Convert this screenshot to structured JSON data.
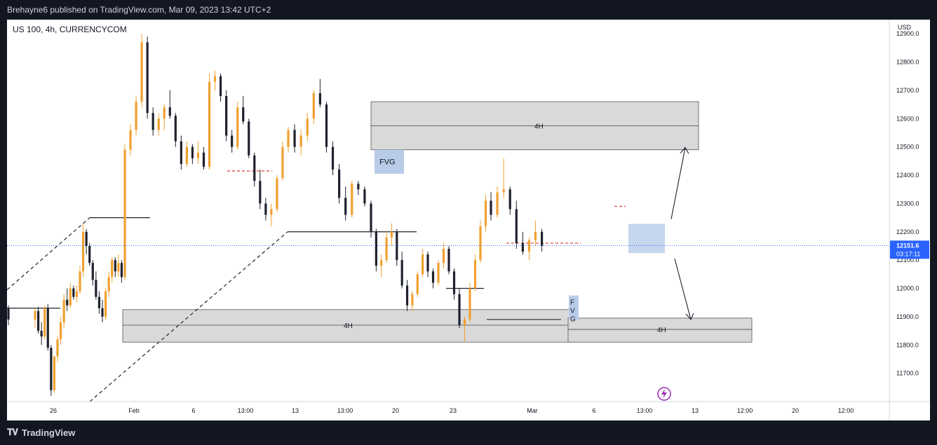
{
  "header": {
    "published": "Brehayne6 published on TradingView.com, Mar 09, 2023 13:42 UTC+2"
  },
  "symbol": "US 100, 4h, CURRENCYCOM",
  "footer": {
    "brand": "TradingView",
    "logo": "tv-logo-icon"
  },
  "colors": {
    "bull": "#f0a030",
    "bear": "#1e222d",
    "zone": "#d9d9d9",
    "fvg": "#b8cce8",
    "price_line": "#2962ff",
    "dashed_red": "#e53935"
  },
  "chart_data": {
    "type": "candlestick",
    "currency": "USD",
    "ylim": [
      11600,
      12950
    ],
    "y_ticks": [
      "12900.0",
      "12800.0",
      "12700.0",
      "12600.0",
      "12500.0",
      "12400.0",
      "12300.0",
      "12200.0",
      "12100.0",
      "12000.0",
      "11900.0",
      "11800.0",
      "11700.0"
    ],
    "x_ticks": [
      "26",
      "Feb",
      "6",
      "13:00",
      "13",
      "13:00",
      "20",
      "23",
      "Mar",
      "6",
      "13:00",
      "13",
      "12:00",
      "20",
      "12:00"
    ],
    "last_price": "12151.6",
    "countdown": "03:17:11",
    "annotations": {
      "zone_upper_label": "4H",
      "zone_lower_left_label": "4H",
      "zone_lower_right_label": "4H",
      "fvg_top_label": "FVG",
      "fvg_bottom_label": "F V G"
    },
    "candles": [
      [
        11930,
        11940,
        11870,
        11890
      ],
      [
        11890,
        11930,
        11860,
        11920
      ],
      [
        11920,
        11935,
        11840,
        11850
      ],
      [
        11850,
        11880,
        11800,
        11830
      ],
      [
        11830,
        11940,
        11820,
        11930
      ],
      [
        11930,
        11945,
        11780,
        11790
      ],
      [
        11790,
        11800,
        11620,
        11640
      ],
      [
        11640,
        11760,
        11630,
        11760
      ],
      [
        11760,
        11830,
        11740,
        11820
      ],
      [
        11820,
        11900,
        11800,
        11880
      ],
      [
        11880,
        11980,
        11860,
        11960
      ],
      [
        11960,
        12000,
        11920,
        11940
      ],
      [
        11940,
        12020,
        11930,
        12000
      ],
      [
        12000,
        12010,
        11960,
        11970
      ],
      [
        11970,
        12010,
        11950,
        11990
      ],
      [
        11990,
        12080,
        11980,
        12060
      ],
      [
        12060,
        12230,
        12040,
        12200
      ],
      [
        12200,
        12210,
        12120,
        12150
      ],
      [
        12150,
        12160,
        12080,
        12090
      ],
      [
        12090,
        12100,
        12010,
        12030
      ],
      [
        12030,
        12060,
        11960,
        11970
      ],
      [
        11970,
        11990,
        11910,
        11930
      ],
      [
        11930,
        11960,
        11880,
        11900
      ],
      [
        11900,
        12000,
        11890,
        11990
      ],
      [
        11990,
        12060,
        11970,
        12040
      ],
      [
        12040,
        12110,
        12020,
        12100
      ],
      [
        12100,
        12110,
        12040,
        12060
      ],
      [
        12060,
        12120,
        12040,
        12090
      ],
      [
        12090,
        12100,
        12020,
        12040
      ],
      [
        12040,
        12510,
        12030,
        12490
      ],
      [
        12490,
        12580,
        12470,
        12560
      ],
      [
        12560,
        12680,
        12540,
        12660
      ],
      [
        12660,
        12900,
        12640,
        12870
      ],
      [
        12870,
        12890,
        12600,
        12620
      ],
      [
        12620,
        12640,
        12540,
        12560
      ],
      [
        12560,
        12620,
        12540,
        12600
      ],
      [
        12600,
        12650,
        12560,
        12640
      ],
      [
        12640,
        12700,
        12600,
        12610
      ],
      [
        12610,
        12620,
        12500,
        12520
      ],
      [
        12520,
        12540,
        12420,
        12440
      ],
      [
        12440,
        12520,
        12430,
        12500
      ],
      [
        12500,
        12510,
        12440,
        12460
      ],
      [
        12460,
        12520,
        12440,
        12480
      ],
      [
        12480,
        12500,
        12420,
        12430
      ],
      [
        12430,
        12760,
        12420,
        12730
      ],
      [
        12730,
        12770,
        12700,
        12750
      ],
      [
        12750,
        12760,
        12660,
        12680
      ],
      [
        12680,
        12700,
        12520,
        12540
      ],
      [
        12540,
        12560,
        12480,
        12500
      ],
      [
        12500,
        12660,
        12490,
        12640
      ],
      [
        12640,
        12680,
        12580,
        12590
      ],
      [
        12590,
        12600,
        12460,
        12470
      ],
      [
        12470,
        12480,
        12360,
        12380
      ],
      [
        12380,
        12420,
        12280,
        12300
      ],
      [
        12300,
        12320,
        12240,
        12260
      ],
      [
        12260,
        12300,
        12220,
        12280
      ],
      [
        12280,
        12400,
        12270,
        12390
      ],
      [
        12390,
        12520,
        12380,
        12500
      ],
      [
        12500,
        12570,
        12480,
        12560
      ],
      [
        12560,
        12580,
        12480,
        12500
      ],
      [
        12500,
        12560,
        12470,
        12540
      ],
      [
        12540,
        12620,
        12520,
        12600
      ],
      [
        12600,
        12700,
        12580,
        12690
      ],
      [
        12690,
        12740,
        12640,
        12650
      ],
      [
        12650,
        12660,
        12480,
        12500
      ],
      [
        12500,
        12520,
        12400,
        12420
      ],
      [
        12420,
        12440,
        12300,
        12320
      ],
      [
        12320,
        12360,
        12240,
        12260
      ],
      [
        12260,
        12380,
        12250,
        12370
      ],
      [
        12370,
        12380,
        12330,
        12350
      ],
      [
        12350,
        12360,
        12290,
        12300
      ],
      [
        12300,
        12310,
        12180,
        12200
      ],
      [
        12200,
        12210,
        12060,
        12080
      ],
      [
        12080,
        12120,
        12040,
        12100
      ],
      [
        12100,
        12200,
        12090,
        12180
      ],
      [
        12180,
        12230,
        12150,
        12200
      ],
      [
        12200,
        12210,
        12080,
        12100
      ],
      [
        12100,
        12130,
        12000,
        12010
      ],
      [
        12010,
        12030,
        11920,
        11940
      ],
      [
        11940,
        11990,
        11920,
        11980
      ],
      [
        11980,
        12060,
        11970,
        12050
      ],
      [
        12050,
        12140,
        12040,
        12120
      ],
      [
        12120,
        12130,
        12040,
        12060
      ],
      [
        12060,
        12070,
        12000,
        12020
      ],
      [
        12020,
        12100,
        12010,
        12090
      ],
      [
        12090,
        12160,
        12070,
        12140
      ],
      [
        12140,
        12150,
        12050,
        12060
      ],
      [
        12060,
        12070,
        11960,
        11980
      ],
      [
        11980,
        12000,
        11860,
        11870
      ],
      [
        11870,
        11900,
        11810,
        11890
      ],
      [
        11890,
        12020,
        11880,
        12000
      ],
      [
        12000,
        12120,
        11990,
        12100
      ],
      [
        12100,
        12240,
        12090,
        12220
      ],
      [
        12220,
        12330,
        12200,
        12310
      ],
      [
        12310,
        12340,
        12240,
        12260
      ],
      [
        12260,
        12360,
        12250,
        12340
      ],
      [
        12340,
        12460,
        12320,
        12350
      ],
      [
        12350,
        12360,
        12260,
        12280
      ],
      [
        12280,
        12310,
        12140,
        12160
      ],
      [
        12160,
        12200,
        12120,
        12130
      ],
      [
        12130,
        12180,
        12100,
        12170
      ],
      [
        12170,
        12240,
        12150,
        12200
      ],
      [
        12200,
        12210,
        12130,
        12150
      ]
    ]
  }
}
